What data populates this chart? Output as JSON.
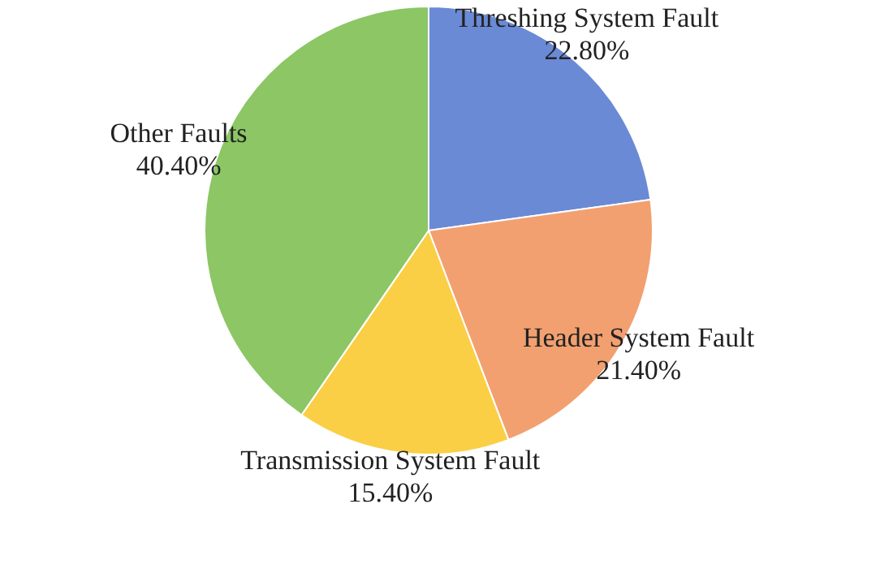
{
  "chart_data": {
    "type": "pie",
    "categories": [
      "Threshing System Fault",
      "Header System Fault",
      "Transmission System Fault",
      "Other Faults"
    ],
    "values": [
      22.8,
      21.4,
      15.4,
      40.4
    ],
    "value_labels": [
      "22.80%",
      "21.40%",
      "15.40%",
      "40.40%"
    ],
    "colors": [
      "#6a8ad6",
      "#f2a070",
      "#fbcf45",
      "#8cc665"
    ],
    "legend": false
  }
}
